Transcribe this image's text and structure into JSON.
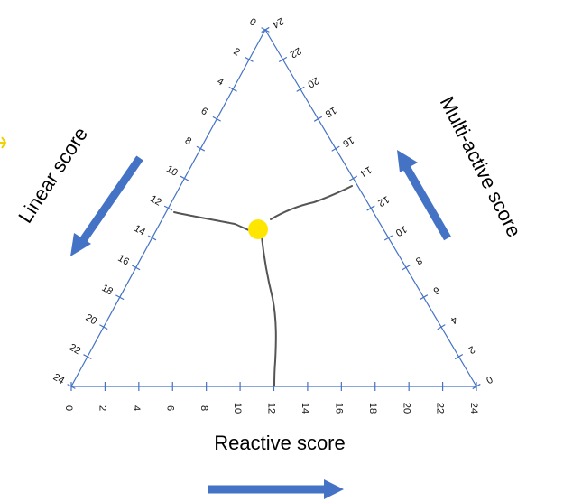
{
  "diagram": {
    "axes": {
      "left": {
        "title": "Linear score",
        "ticks": [
          "0",
          "2",
          "4",
          "6",
          "8",
          "10",
          "12",
          "14",
          "16",
          "18",
          "20",
          "22",
          "24"
        ]
      },
      "right": {
        "title": "Multi-active score",
        "ticks": [
          "24",
          "22",
          "20",
          "18",
          "16",
          "14",
          "12",
          "10",
          "8",
          "6",
          "4",
          "2",
          "0"
        ]
      },
      "bottom": {
        "title": "Reactive score",
        "ticks": [
          "0",
          "2",
          "4",
          "6",
          "8",
          "10",
          "12",
          "14",
          "16",
          "18",
          "20",
          "22",
          "24"
        ]
      }
    },
    "point": {
      "linear": 12,
      "multi_active": 14,
      "reactive": 12
    },
    "colors": {
      "axis": "#4472c4",
      "arrow": "#4472c4",
      "marker": "#ffe600",
      "connector": "#555555",
      "edge_mark": "#f0d000"
    }
  }
}
